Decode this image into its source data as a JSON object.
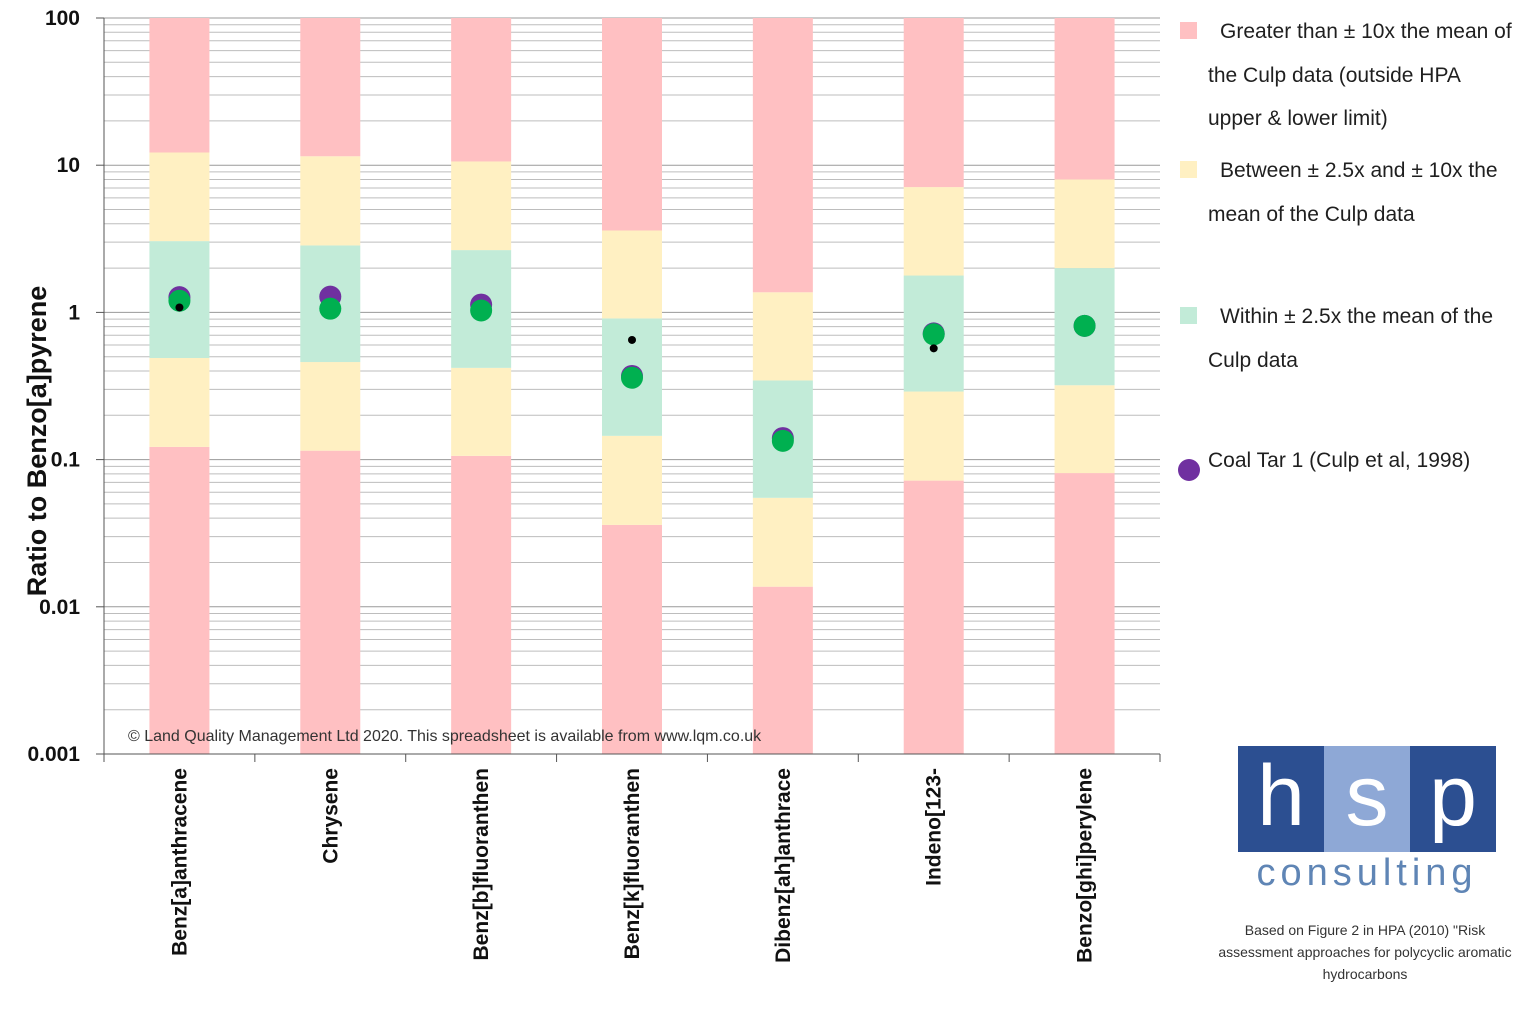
{
  "chart_data": {
    "type": "scatter",
    "y_scale": "log",
    "ylim": [
      0.001,
      100
    ],
    "ylabel": "Ratio to Benzo[a]pyrene",
    "y_ticks": [
      "0.001",
      "0.01",
      "0.1",
      "1",
      "10",
      "100"
    ],
    "grid": "horizontal minor gridlines",
    "legend_position": "right",
    "categories": [
      "Benz[a]anthracene",
      "Chrysene",
      "Benz[b]fluoranthen",
      "Benz[k]fluoranthen",
      "Dibenz[ah]anthrace",
      "Indeno[123-",
      "Benzo[ghi]perylene"
    ],
    "bands": {
      "inner_lower": [
        0.49,
        0.46,
        0.42,
        0.145,
        0.055,
        0.29,
        0.32
      ],
      "inner_upper": [
        3.05,
        2.85,
        2.65,
        0.91,
        0.345,
        1.78,
        2.0
      ],
      "outer_lower": [
        0.122,
        0.115,
        0.106,
        0.036,
        0.0137,
        0.072,
        0.081
      ],
      "outer_upper": [
        12.2,
        11.5,
        10.6,
        3.6,
        1.37,
        7.1,
        8.0
      ]
    },
    "series": [
      {
        "name": "Coal Tar 1 (Culp et al, 1998)",
        "color": "#7030a0",
        "values": [
          1.27,
          1.28,
          1.13,
          0.37,
          0.14,
          0.72,
          0.81
        ]
      },
      {
        "color": "#00b050",
        "values": [
          1.2,
          1.06,
          1.03,
          0.36,
          0.134,
          0.71,
          0.81
        ]
      },
      {
        "color": "#000000",
        "values": [
          1.08,
          null,
          null,
          0.65,
          null,
          0.57,
          null
        ]
      }
    ],
    "band_colors": {
      "outside": "#ffc0c2",
      "between": "#fff0c2",
      "within": "#c2ebd8"
    }
  },
  "legend": {
    "items": [
      {
        "label": "Greater than ± 10x the mean of the Culp data (outside HPA upper & lower limit)",
        "color": "#ffc0c2"
      },
      {
        "label": "Between ± 2.5x and ± 10x the mean of the Culp data",
        "color": "#fff0c2"
      },
      {
        "label": "Within ± 2.5x the mean of the Culp data",
        "color": "#c2ebd8"
      },
      {
        "label": "Coal Tar 1 (Culp et al, 1998)",
        "color": "#7030a0"
      }
    ]
  },
  "copyright": "© Land Quality Management Ltd 2020. This spreadsheet is available from  www.lqm.co.uk",
  "logo": {
    "letters": [
      "h",
      "s",
      "p"
    ],
    "word": "consulting",
    "colors": [
      "#2c4f91",
      "#8ea8d6",
      "#2c4f91"
    ],
    "word_color": "#5f85b5"
  },
  "note": "Based on Figure 2 in HPA (2010) \"Risk assessment approaches for polycyclic aromatic hydrocarbons"
}
